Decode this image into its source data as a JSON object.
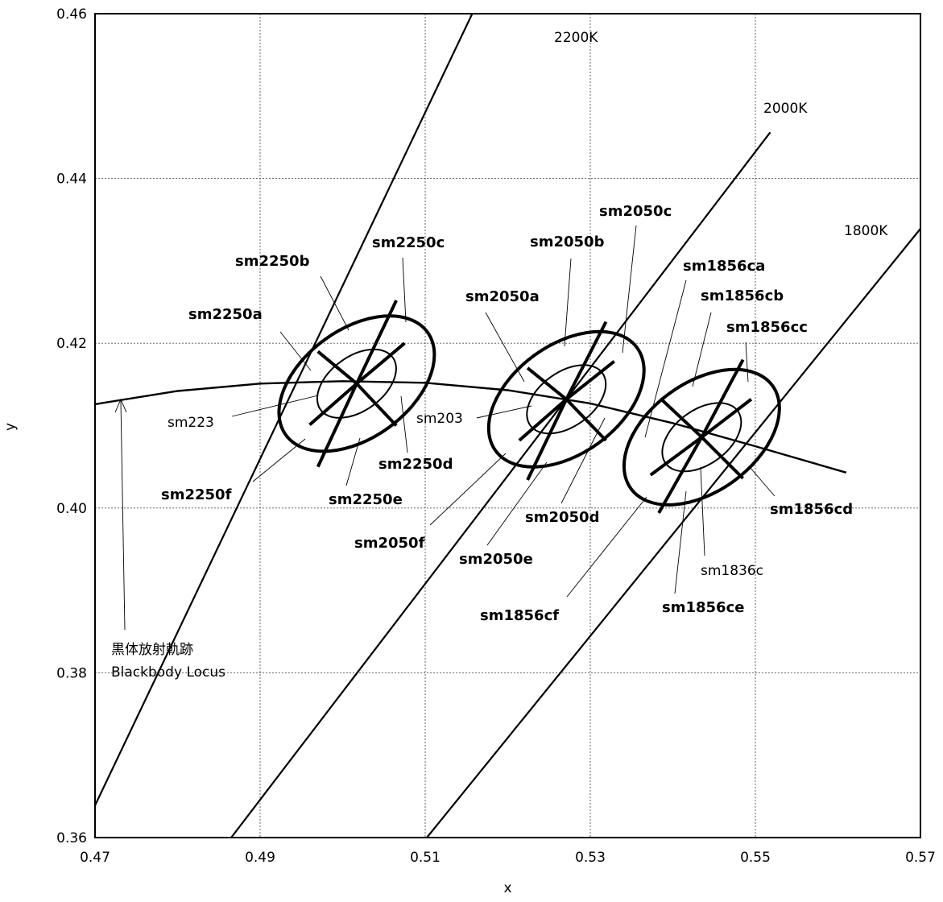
{
  "chart_data": {
    "type": "scatter",
    "xlabel": "x",
    "ylabel": "y",
    "xlim": [
      0.47,
      0.57
    ],
    "ylim": [
      0.36,
      0.46
    ],
    "x_ticks": [
      "0.47",
      "0.49",
      "0.51",
      "0.53",
      "0.55",
      "0.57"
    ],
    "y_ticks": [
      "0.36",
      "0.38",
      "0.40",
      "0.42",
      "0.44",
      "0.46"
    ],
    "grid": true,
    "blackbody_locus": {
      "label_ja": "黒体放射軌跡",
      "label_en": "Blackbody Locus",
      "x": [
        0.47,
        0.48,
        0.49,
        0.5,
        0.51,
        0.52,
        0.53,
        0.54,
        0.55,
        0.561
      ],
      "y": [
        0.4126,
        0.4142,
        0.4151,
        0.4154,
        0.4152,
        0.4143,
        0.4127,
        0.4103,
        0.4075,
        0.4043
      ]
    },
    "isotherms": [
      {
        "name": "2200K",
        "x": [
          0.47,
          0.5157
        ],
        "y": [
          0.3639,
          0.46
        ]
      },
      {
        "name": "2000K",
        "x": [
          0.4865,
          0.5518
        ],
        "y": [
          0.36,
          0.4456
        ]
      },
      {
        "name": "1800K",
        "x": [
          0.5102,
          0.57
        ],
        "y": [
          0.36,
          0.4339
        ]
      }
    ],
    "quadrangles": [
      {
        "center": [
          0.5017,
          0.4151
        ],
        "outer": {
          "rx": 0.0106,
          "ry": 0.0066,
          "angle": 0.0
        },
        "inner": {
          "rx": 0.0054,
          "ry": 0.0033,
          "angle": 0.0
        },
        "spokes": [
          [
            0.5065,
            0.4252
          ],
          [
            0.5075,
            0.42
          ],
          [
            0.5065,
            0.41
          ],
          [
            0.497,
            0.405
          ],
          [
            0.496,
            0.4101
          ],
          [
            0.497,
            0.419
          ]
        ],
        "center_label": "sm223",
        "labels": [
          "sm2250a",
          "sm2250b",
          "sm2250c",
          "sm2250d",
          "sm2250e",
          "sm2250f"
        ]
      },
      {
        "center": [
          0.5271,
          0.4132
        ],
        "outer": {
          "rx": 0.0106,
          "ry": 0.0066,
          "angle": 0.0
        },
        "inner": {
          "rx": 0.0054,
          "ry": 0.0033,
          "angle": 0.0
        },
        "spokes": [
          [
            0.5319,
            0.4226
          ],
          [
            0.5329,
            0.4178
          ],
          [
            0.5319,
            0.4082
          ],
          [
            0.5224,
            0.4034
          ],
          [
            0.5214,
            0.4082
          ],
          [
            0.5224,
            0.417
          ]
        ],
        "center_label": "sm203",
        "labels": [
          "sm2050a",
          "sm2050b",
          "sm2050c",
          "sm2050d",
          "sm2050e",
          "sm2050f"
        ]
      },
      {
        "center": [
          0.5435,
          0.4086
        ],
        "outer": {
          "rx": 0.0106,
          "ry": 0.0066,
          "angle": 0.0
        },
        "inner": {
          "rx": 0.0054,
          "ry": 0.0033,
          "angle": 0.0
        },
        "spokes": [
          [
            0.5485,
            0.418
          ],
          [
            0.5495,
            0.4132
          ],
          [
            0.5485,
            0.4036
          ],
          [
            0.5383,
            0.3994
          ],
          [
            0.5373,
            0.404
          ],
          [
            0.5385,
            0.4133
          ]
        ],
        "center_label": "sm1836c",
        "labels": [
          "sm1856ca",
          "sm1856cb",
          "sm1856cc",
          "sm1856cd",
          "sm1856ce",
          "sm1856cf"
        ]
      }
    ]
  }
}
